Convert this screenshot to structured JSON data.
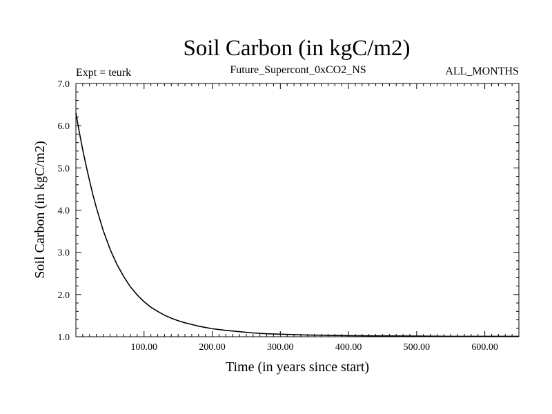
{
  "chart_data": {
    "type": "line",
    "title": "Soil Carbon (in kgC/m2)",
    "subtitle": "Future_Supercont_0xCO2_NS",
    "left_note": "Expt = teurk",
    "right_note": "ALL_MONTHS",
    "xlabel": "Time (in years since start)",
    "ylabel": "Soil Carbon (in kgC/m2)",
    "xlim": [
      0,
      650
    ],
    "ylim": [
      1.0,
      7.0
    ],
    "x_ticks": [
      100,
      200,
      300,
      400,
      500,
      600
    ],
    "x_tick_labels": [
      "100.00",
      "200.00",
      "300.00",
      "400.00",
      "500.00",
      "600.00"
    ],
    "y_ticks": [
      1,
      2,
      3,
      4,
      5,
      6,
      7
    ],
    "y_tick_labels": [
      "1.0",
      "2.0",
      "3.0",
      "4.0",
      "5.0",
      "6.0",
      "7.0"
    ],
    "grid": false,
    "line_color": "#000000",
    "series": [
      {
        "x": [
          0,
          5,
          10,
          15,
          20,
          25,
          30,
          40,
          50,
          60,
          70,
          80,
          90,
          100,
          110,
          120,
          130,
          140,
          150,
          160,
          170,
          180,
          190,
          200,
          220,
          240,
          260,
          280,
          300,
          320,
          340,
          360,
          380,
          400,
          450,
          500,
          550,
          600,
          650
        ],
        "values": [
          6.3,
          5.85,
          5.43,
          5.05,
          4.7,
          4.36,
          4.06,
          3.52,
          3.08,
          2.72,
          2.43,
          2.18,
          1.99,
          1.83,
          1.7,
          1.6,
          1.51,
          1.44,
          1.38,
          1.33,
          1.29,
          1.25,
          1.22,
          1.19,
          1.15,
          1.12,
          1.09,
          1.07,
          1.06,
          1.05,
          1.04,
          1.035,
          1.03,
          1.025,
          1.02,
          1.015,
          1.01,
          1.01,
          1.01
        ]
      }
    ]
  }
}
